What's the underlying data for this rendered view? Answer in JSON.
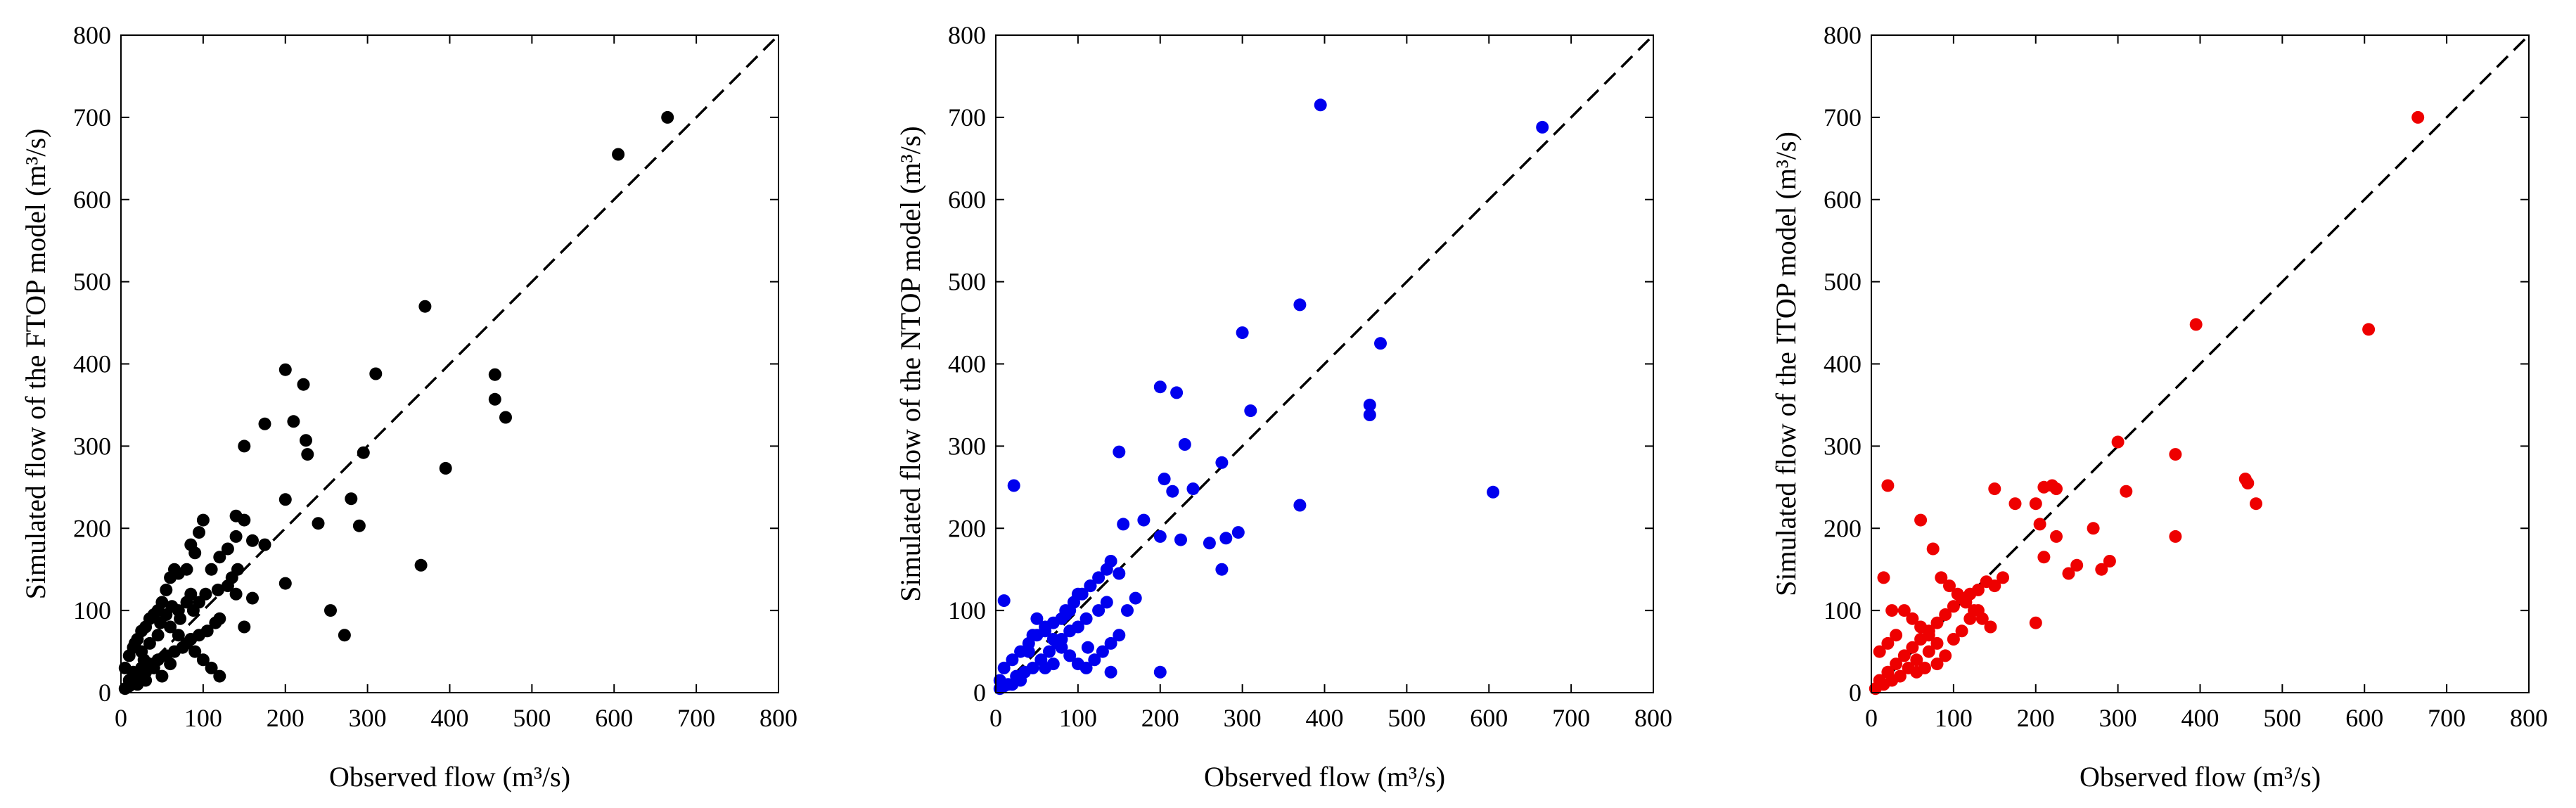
{
  "chart_data": [
    {
      "type": "scatter",
      "xlabel": "Observed flow (m³/s)",
      "ylabel": "Simulated flow of the FTOP model (m³/s)",
      "xlim": [
        0,
        800
      ],
      "ylim": [
        0,
        800
      ],
      "xticks": [
        0,
        100,
        200,
        300,
        400,
        500,
        600,
        700,
        800
      ],
      "yticks": [
        0,
        100,
        200,
        300,
        400,
        500,
        600,
        700,
        800
      ],
      "reference_line": "1:1 dashed",
      "color": "#000000",
      "series": [
        {
          "x": [
            665,
            605,
            370,
            310,
            200,
            222,
            455,
            455,
            468,
            395,
            210,
            225,
            227,
            175,
            150,
            295,
            280,
            240,
            290,
            365,
            255,
            272,
            200,
            200,
            175,
            160,
            150,
            140,
            140,
            130,
            120,
            110,
            100,
            95,
            90,
            85,
            80,
            70,
            65,
            60,
            55,
            50,
            45,
            40,
            35,
            30,
            25,
            20,
            15,
            10,
            5,
            55,
            60,
            70,
            80,
            90,
            100,
            110,
            120,
            60,
            40,
            30,
            20,
            10,
            25,
            35,
            45,
            70,
            80,
            130,
            140,
            160,
            150,
            120,
            115,
            105,
            95,
            85,
            75,
            65,
            55,
            45,
            35,
            25,
            15,
            95,
            85,
            50,
            30,
            20,
            10,
            5,
            48,
            62,
            72,
            88,
            103,
            118,
            135,
            142,
            17,
            28
          ],
          "y": [
            700,
            655,
            470,
            388,
            393,
            375,
            387,
            357,
            335,
            273,
            330,
            307,
            290,
            327,
            300,
            292,
            236,
            206,
            203,
            155,
            100,
            70,
            235,
            133,
            180,
            185,
            210,
            215,
            190,
            175,
            165,
            150,
            210,
            195,
            170,
            180,
            150,
            145,
            150,
            140,
            125,
            110,
            100,
            95,
            90,
            80,
            75,
            65,
            55,
            45,
            30,
            95,
            80,
            70,
            60,
            50,
            40,
            30,
            20,
            35,
            30,
            25,
            20,
            15,
            50,
            60,
            70,
            100,
            110,
            130,
            120,
            115,
            80,
            90,
            85,
            75,
            70,
            65,
            55,
            50,
            45,
            40,
            35,
            30,
            25,
            110,
            120,
            20,
            15,
            10,
            8,
            5,
            85,
            105,
            90,
            100,
            120,
            125,
            140,
            150,
            60,
            40
          ]
        }
      ]
    },
    {
      "type": "scatter",
      "xlabel": "Observed flow (m³/s)",
      "ylabel": "Simulated flow of the NTOP model (m³/s)",
      "xlim": [
        0,
        800
      ],
      "ylim": [
        0,
        800
      ],
      "xticks": [
        0,
        100,
        200,
        300,
        400,
        500,
        600,
        700,
        800
      ],
      "yticks": [
        0,
        100,
        200,
        300,
        400,
        500,
        600,
        700,
        800
      ],
      "reference_line": "1:1 dashed",
      "color": "#0000ee",
      "series": [
        {
          "x": [
            395,
            665,
            370,
            300,
            468,
            455,
            455,
            310,
            200,
            220,
            605,
            370,
            150,
            205,
            215,
            230,
            240,
            275,
            280,
            295,
            260,
            225,
            275,
            200,
            200,
            180,
            155,
            150,
            140,
            135,
            125,
            115,
            100,
            95,
            90,
            85,
            80,
            70,
            60,
            50,
            40,
            30,
            20,
            10,
            22,
            10,
            5,
            60,
            70,
            80,
            90,
            100,
            110,
            120,
            130,
            140,
            150,
            170,
            160,
            110,
            100,
            75,
            65,
            55,
            45,
            35,
            25,
            15,
            50,
            45,
            40,
            85,
            95,
            105,
            115,
            125,
            135,
            60,
            70,
            30,
            20,
            10,
            5,
            80,
            90,
            112,
            140
          ],
          "y": [
            715,
            688,
            472,
            438,
            425,
            350,
            338,
            343,
            372,
            365,
            244,
            228,
            293,
            260,
            245,
            302,
            248,
            280,
            188,
            195,
            182,
            186,
            150,
            190,
            25,
            210,
            205,
            145,
            160,
            150,
            140,
            130,
            120,
            110,
            100,
            95,
            90,
            85,
            80,
            70,
            60,
            50,
            40,
            30,
            252,
            112,
            15,
            75,
            65,
            55,
            45,
            35,
            30,
            40,
            50,
            60,
            70,
            115,
            100,
            90,
            80,
            60,
            50,
            40,
            30,
            25,
            20,
            10,
            90,
            70,
            50,
            100,
            110,
            120,
            130,
            100,
            110,
            30,
            35,
            15,
            10,
            8,
            5,
            65,
            75,
            55,
            25
          ]
        }
      ]
    },
    {
      "type": "scatter",
      "xlabel": "Observed flow (m³/s)",
      "ylabel": "Simulated flow of the ITOP model (m³/s)",
      "xlim": [
        0,
        800
      ],
      "ylim": [
        0,
        800
      ],
      "xticks": [
        0,
        100,
        200,
        300,
        400,
        500,
        600,
        700,
        800
      ],
      "yticks": [
        0,
        100,
        200,
        300,
        400,
        500,
        600,
        700,
        800
      ],
      "reference_line": "1:1 dashed",
      "color": "#ee0000",
      "series": [
        {
          "x": [
            665,
            395,
            605,
            300,
            370,
            455,
            458,
            468,
            310,
            210,
            220,
            225,
            150,
            200,
            225,
            175,
            205,
            240,
            270,
            280,
            290,
            250,
            200,
            210,
            370,
            20,
            160,
            150,
            140,
            130,
            120,
            110,
            100,
            90,
            80,
            70,
            60,
            50,
            40,
            30,
            20,
            10,
            5,
            60,
            75,
            85,
            95,
            105,
            115,
            125,
            135,
            145,
            80,
            70,
            55,
            45,
            35,
            25,
            15,
            40,
            50,
            60,
            70,
            100,
            110,
            120,
            130,
            30,
            20,
            10,
            15,
            25,
            90,
            80,
            65,
            55
          ],
          "y": [
            700,
            448,
            442,
            305,
            290,
            260,
            255,
            230,
            245,
            250,
            252,
            248,
            248,
            230,
            190,
            230,
            205,
            145,
            200,
            150,
            160,
            155,
            85,
            165,
            190,
            252,
            140,
            130,
            135,
            125,
            120,
            115,
            105,
            95,
            85,
            75,
            65,
            55,
            45,
            35,
            25,
            15,
            5,
            210,
            175,
            140,
            130,
            120,
            110,
            100,
            90,
            80,
            60,
            50,
            40,
            30,
            20,
            15,
            10,
            100,
            90,
            80,
            70,
            65,
            75,
            90,
            100,
            70,
            60,
            50,
            140,
            100,
            45,
            35,
            30,
            25
          ]
        }
      ]
    }
  ]
}
